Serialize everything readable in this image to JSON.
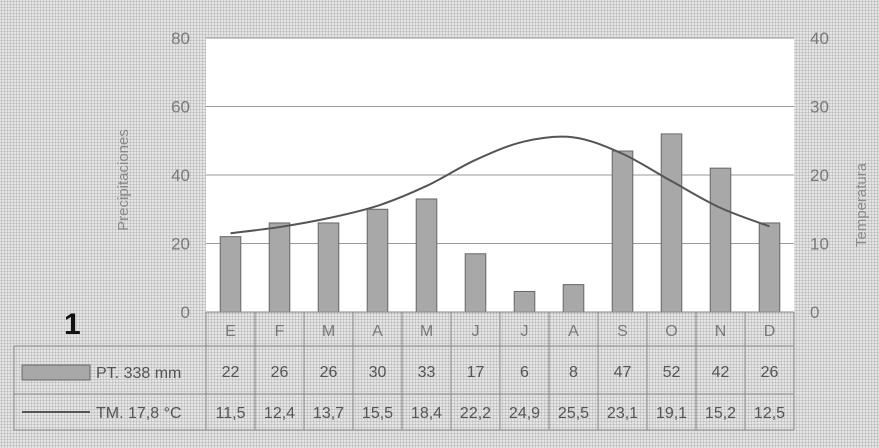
{
  "figure": {
    "label": "1"
  },
  "chart_data": {
    "type": "bar",
    "categories": [
      "E",
      "F",
      "M",
      "A",
      "M",
      "J",
      "J",
      "A",
      "S",
      "O",
      "N",
      "D"
    ],
    "series": [
      {
        "name": "PT. 338 mm",
        "type": "bar",
        "axis": "left",
        "values": [
          22,
          26,
          26,
          30,
          33,
          17,
          6,
          8,
          47,
          52,
          42,
          26
        ],
        "labels": [
          "22",
          "26",
          "26",
          "30",
          "33",
          "17",
          "6",
          "8",
          "47",
          "52",
          "42",
          "26"
        ]
      },
      {
        "name": "TM. 17,8 °C",
        "type": "line",
        "axis": "right",
        "values": [
          11.5,
          12.4,
          13.7,
          15.5,
          18.4,
          22.2,
          24.9,
          25.5,
          23.1,
          19.1,
          15.2,
          12.5
        ],
        "labels": [
          "11,5",
          "12,4",
          "13,7",
          "15,5",
          "18,4",
          "22,2",
          "24,9",
          "25,5",
          "23,1",
          "19,1",
          "15,2",
          "12,5"
        ]
      }
    ],
    "ylabel": "Precipitaciones",
    "y2label": "Temperatura",
    "ylim": [
      0,
      80
    ],
    "y2lim": [
      0,
      40
    ],
    "yticks": [
      "0",
      "20",
      "40",
      "60",
      "80"
    ],
    "y2ticks": [
      "0",
      "10",
      "20",
      "30",
      "40"
    ],
    "grid": true,
    "legend": "table below chart",
    "colors": {
      "bar_fill": "#a8a8a8",
      "line": "#555555",
      "plot_bg": "#ffffff",
      "grid": "#999999"
    }
  }
}
